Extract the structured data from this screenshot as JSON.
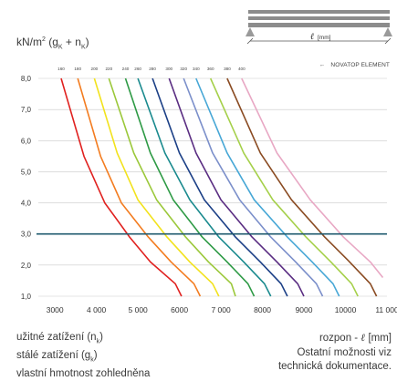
{
  "header": {
    "ylabel_main": "kN/m",
    "ylabel_sup": "2",
    "ylabel_open": " (g",
    "ylabel_sub1": "K",
    "ylabel_plus": " + n",
    "ylabel_sub2": "K",
    "ylabel_close": ")",
    "beam_label": "[mm]",
    "beam_ell": "ℓ",
    "note_arrow": "←",
    "note_text": "NOVATOP ELEMENT"
  },
  "footer": {
    "left_line1_pre": "užitné zatížení (n",
    "left_line1_sub": "k",
    "left_line1_post": ")",
    "left_line2_pre": "stálé zatížení (g",
    "left_line2_sub": "k",
    "left_line2_post": ")",
    "left_line3": "vlastní hmotnost zohledněna",
    "right_line1_pre": "rozpon - ",
    "right_line1_ell": "ℓ",
    "right_line1_post": " [mm]",
    "right_line2": "Ostatní možnosti viz",
    "right_line3": "technická dokumentace."
  },
  "colors": {
    "reference_line": "#1f5a6e",
    "grid": "#c9c9c9",
    "axis_text": "#333333"
  },
  "chart_data": {
    "type": "line",
    "xlim": [
      2600,
      11000
    ],
    "ylim": [
      1.0,
      8.0
    ],
    "x_ticks": [
      3000,
      4000,
      5000,
      6000,
      7000,
      8000,
      9000,
      10000,
      11000
    ],
    "x_tick_labels": [
      "3000",
      "4 000",
      "5 000",
      "6000",
      "7 000",
      "8000",
      "9000",
      "10000",
      "11 000"
    ],
    "y_ticks": [
      1.0,
      2.0,
      3.0,
      4.0,
      5.0,
      6.0,
      7.0,
      8.0
    ],
    "y_tick_labels": [
      "1,0",
      "2,0",
      "3,0",
      "4,0",
      "5,0",
      "6,0",
      "7,0",
      "8,0"
    ],
    "grid": "horizontal",
    "reference_line": {
      "y": 3.0
    },
    "series": [
      {
        "name": "160",
        "color": "#e0211f",
        "points": [
          [
            3150,
            8.0
          ],
          [
            3700,
            5.5
          ],
          [
            4200,
            4.0
          ],
          [
            4800,
            2.9
          ],
          [
            5300,
            2.1
          ],
          [
            5900,
            1.4
          ],
          [
            6050,
            1.0
          ]
        ]
      },
      {
        "name": "180",
        "color": "#f37c20",
        "points": [
          [
            3550,
            8.0
          ],
          [
            4100,
            5.5
          ],
          [
            4600,
            4.0
          ],
          [
            5250,
            2.9
          ],
          [
            5800,
            2.1
          ],
          [
            6350,
            1.4
          ],
          [
            6500,
            1.0
          ]
        ]
      },
      {
        "name": "200",
        "color": "#f2e21c",
        "points": [
          [
            3950,
            8.0
          ],
          [
            4500,
            5.6
          ],
          [
            5000,
            4.1
          ],
          [
            5700,
            2.9
          ],
          [
            6250,
            2.1
          ],
          [
            6800,
            1.4
          ],
          [
            6950,
            1.0
          ]
        ]
      },
      {
        "name": "220",
        "color": "#9bc83a",
        "points": [
          [
            4300,
            8.0
          ],
          [
            4900,
            5.6
          ],
          [
            5450,
            4.1
          ],
          [
            6150,
            2.9
          ],
          [
            6700,
            2.1
          ],
          [
            7250,
            1.4
          ],
          [
            7350,
            1.0
          ]
        ]
      },
      {
        "name": "240",
        "color": "#2e9a45",
        "points": [
          [
            4700,
            8.0
          ],
          [
            5300,
            5.6
          ],
          [
            5850,
            4.1
          ],
          [
            6550,
            2.9
          ],
          [
            7150,
            2.1
          ],
          [
            7650,
            1.4
          ],
          [
            7800,
            1.0
          ]
        ]
      },
      {
        "name": "260",
        "color": "#1a8a8e",
        "points": [
          [
            5000,
            8.0
          ],
          [
            5650,
            5.6
          ],
          [
            6250,
            4.1
          ],
          [
            6950,
            2.9
          ],
          [
            7550,
            2.1
          ],
          [
            8050,
            1.4
          ],
          [
            8200,
            1.0
          ]
        ]
      },
      {
        "name": "280",
        "color": "#1b3f86",
        "points": [
          [
            5350,
            8.0
          ],
          [
            6000,
            5.6
          ],
          [
            6600,
            4.1
          ],
          [
            7350,
            2.9
          ],
          [
            7950,
            2.1
          ],
          [
            8450,
            1.4
          ],
          [
            8600,
            1.0
          ]
        ]
      },
      {
        "name": "300",
        "color": "#5a2d82",
        "points": [
          [
            5750,
            8.0
          ],
          [
            6400,
            5.6
          ],
          [
            7000,
            4.1
          ],
          [
            7750,
            2.9
          ],
          [
            8350,
            2.1
          ],
          [
            8850,
            1.4
          ],
          [
            9000,
            1.0
          ]
        ]
      },
      {
        "name": "320",
        "color": "#7b8fca",
        "points": [
          [
            6100,
            8.0
          ],
          [
            6800,
            5.6
          ],
          [
            7450,
            4.1
          ],
          [
            8200,
            2.9
          ],
          [
            8800,
            2.1
          ],
          [
            9300,
            1.4
          ],
          [
            9450,
            1.0
          ]
        ]
      },
      {
        "name": "340",
        "color": "#47a7d6",
        "points": [
          [
            6400,
            8.0
          ],
          [
            7150,
            5.6
          ],
          [
            7800,
            4.1
          ],
          [
            8600,
            2.9
          ],
          [
            9200,
            2.1
          ],
          [
            9700,
            1.4
          ],
          [
            9850,
            1.0
          ]
        ]
      },
      {
        "name": "360",
        "color": "#a5d04a",
        "points": [
          [
            6750,
            8.0
          ],
          [
            7550,
            5.6
          ],
          [
            8250,
            4.1
          ],
          [
            9050,
            2.9
          ],
          [
            9650,
            2.1
          ],
          [
            10150,
            1.4
          ],
          [
            10300,
            1.0
          ]
        ]
      },
      {
        "name": "380",
        "color": "#8a4b22",
        "points": [
          [
            7150,
            8.0
          ],
          [
            7950,
            5.6
          ],
          [
            8700,
            4.1
          ],
          [
            9500,
            2.9
          ],
          [
            10100,
            2.1
          ],
          [
            10600,
            1.4
          ],
          [
            10750,
            1.0
          ]
        ]
      },
      {
        "name": "400",
        "color": "#e8a8c4",
        "points": [
          [
            7500,
            8.0
          ],
          [
            8350,
            5.6
          ],
          [
            9150,
            4.1
          ],
          [
            9950,
            2.9
          ],
          [
            10600,
            2.1
          ],
          [
            10900,
            1.6
          ]
        ]
      }
    ]
  }
}
